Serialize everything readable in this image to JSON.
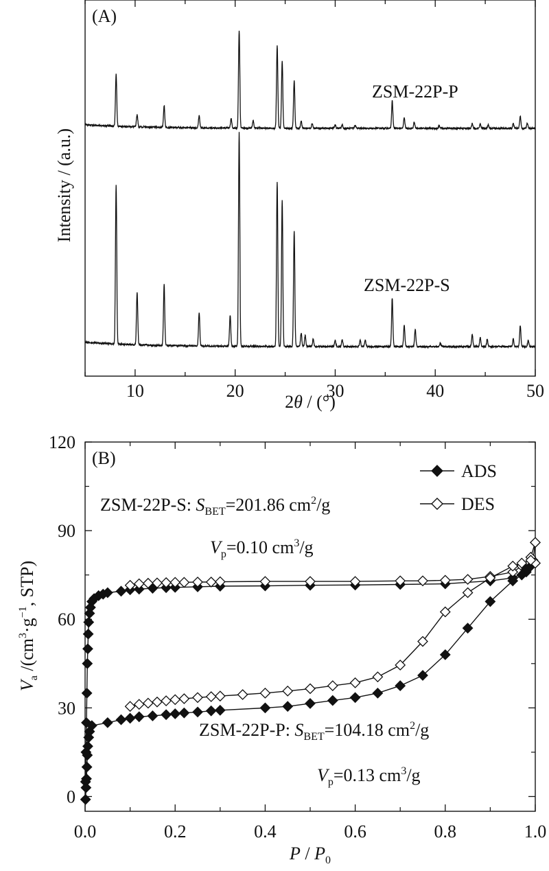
{
  "chart_data": [
    {
      "panel_label": "(A)",
      "type": "line",
      "xlabel": "2θ / (°)",
      "xlabel_parts": [
        "2",
        "θ",
        " / (°)"
      ],
      "ylabel": "Intensity / (a.u.)",
      "xlim": [
        5,
        50
      ],
      "xticks": [
        10,
        20,
        30,
        40,
        50
      ],
      "y_ticks_shown": false,
      "series": [
        {
          "name": "ZSM-22P-P",
          "baseline": 0.1,
          "peaks": [
            [
              8.1,
              0.85
            ],
            [
              10.2,
              0.2
            ],
            [
              12.9,
              0.36
            ],
            [
              16.4,
              0.2
            ],
            [
              19.6,
              0.16
            ],
            [
              20.4,
              1.6
            ],
            [
              21.8,
              0.12
            ],
            [
              24.2,
              1.35
            ],
            [
              24.7,
              1.1
            ],
            [
              25.9,
              0.78
            ],
            [
              26.6,
              0.12
            ],
            [
              27.7,
              0.08
            ],
            [
              30.0,
              0.06
            ],
            [
              30.7,
              0.06
            ],
            [
              32.0,
              0.05
            ],
            [
              35.7,
              0.45
            ],
            [
              36.9,
              0.18
            ],
            [
              37.9,
              0.1
            ],
            [
              40.4,
              0.05
            ],
            [
              43.7,
              0.08
            ],
            [
              44.5,
              0.07
            ],
            [
              45.3,
              0.06
            ],
            [
              47.8,
              0.08
            ],
            [
              48.5,
              0.2
            ],
            [
              49.2,
              0.08
            ]
          ]
        },
        {
          "name": "ZSM-22P-S",
          "baseline": 0.12,
          "peaks": [
            [
              8.1,
              2.6
            ],
            [
              10.2,
              0.85
            ],
            [
              12.9,
              1.0
            ],
            [
              16.4,
              0.55
            ],
            [
              19.5,
              0.5
            ],
            [
              20.4,
              3.5
            ],
            [
              24.2,
              2.7
            ],
            [
              24.7,
              2.4
            ],
            [
              25.9,
              1.9
            ],
            [
              26.6,
              0.22
            ],
            [
              27.0,
              0.18
            ],
            [
              27.8,
              0.12
            ],
            [
              30.0,
              0.1
            ],
            [
              30.7,
              0.12
            ],
            [
              32.5,
              0.1
            ],
            [
              33.0,
              0.1
            ],
            [
              35.7,
              0.8
            ],
            [
              36.9,
              0.35
            ],
            [
              38.0,
              0.28
            ],
            [
              40.5,
              0.06
            ],
            [
              43.7,
              0.2
            ],
            [
              44.5,
              0.15
            ],
            [
              45.2,
              0.12
            ],
            [
              47.8,
              0.12
            ],
            [
              48.5,
              0.35
            ],
            [
              49.3,
              0.1
            ]
          ]
        }
      ],
      "annotations": [
        "ZSM-22P-P",
        "ZSM-22P-S"
      ]
    },
    {
      "panel_label": "(B)",
      "type": "line",
      "xlabel": "P / P0",
      "xlabel_parts": [
        "P",
        " / ",
        "P",
        "0"
      ],
      "ylabel": "Va /(cm3·g−1, STP)",
      "ylabel_parts": [
        "V",
        "a",
        " /(cm",
        "3",
        "·g",
        "−1",
        ", STP)"
      ],
      "xlim": [
        0.0,
        1.0
      ],
      "ylim": [
        -5,
        120
      ],
      "xticks": [
        "0.0",
        "0.2",
        "0.4",
        "0.6",
        "0.8",
        "1.0"
      ],
      "yticks": [
        "0",
        "30",
        "60",
        "90",
        "120"
      ],
      "legend": {
        "position": "top-right",
        "entries": [
          {
            "label": "ADS",
            "marker": "filled-diamond"
          },
          {
            "label": "DES",
            "marker": "open-diamond"
          }
        ]
      },
      "series": [
        {
          "name": "ADS",
          "sample": "ZSM-22P-S",
          "points": [
            [
              0.001,
              5
            ],
            [
              0.002,
              15
            ],
            [
              0.003,
              25
            ],
            [
              0.004,
              35
            ],
            [
              0.005,
              45
            ],
            [
              0.006,
              50
            ],
            [
              0.007,
              55
            ],
            [
              0.008,
              59
            ],
            [
              0.01,
              62
            ],
            [
              0.012,
              64
            ],
            [
              0.015,
              66
            ],
            [
              0.02,
              67
            ],
            [
              0.03,
              68
            ],
            [
              0.04,
              68.5
            ],
            [
              0.05,
              69
            ],
            [
              0.08,
              69.5
            ],
            [
              0.1,
              70
            ],
            [
              0.12,
              70.2
            ],
            [
              0.15,
              70.5
            ],
            [
              0.18,
              70.7
            ],
            [
              0.2,
              70.8
            ],
            [
              0.25,
              71
            ],
            [
              0.3,
              71.2
            ],
            [
              0.4,
              71.3
            ],
            [
              0.5,
              71.5
            ],
            [
              0.6,
              71.6
            ],
            [
              0.7,
              71.8
            ],
            [
              0.8,
              72
            ],
            [
              0.9,
              73
            ],
            [
              0.95,
              74
            ],
            [
              0.98,
              76
            ],
            [
              0.995,
              80
            ],
            [
              1.0,
              86
            ]
          ]
        },
        {
          "name": "DES",
          "sample": "ZSM-22P-S",
          "points": [
            [
              1.0,
              86
            ],
            [
              0.99,
              81
            ],
            [
              0.97,
              78
            ],
            [
              0.95,
              76
            ],
            [
              0.9,
              74.5
            ],
            [
              0.85,
              73.5
            ],
            [
              0.8,
              73.2
            ],
            [
              0.75,
              73
            ],
            [
              0.7,
              73
            ],
            [
              0.6,
              72.8
            ],
            [
              0.5,
              72.8
            ],
            [
              0.4,
              72.8
            ],
            [
              0.3,
              72.7
            ],
            [
              0.28,
              72.6
            ],
            [
              0.25,
              72.6
            ],
            [
              0.22,
              72.5
            ],
            [
              0.2,
              72.5
            ],
            [
              0.18,
              72.4
            ],
            [
              0.16,
              72.3
            ],
            [
              0.14,
              72.2
            ],
            [
              0.12,
              72.0
            ],
            [
              0.1,
              71.5
            ]
          ]
        },
        {
          "name": "ADS",
          "sample": "ZSM-22P-P",
          "points": [
            [
              0.001,
              -1
            ],
            [
              0.002,
              3
            ],
            [
              0.003,
              6
            ],
            [
              0.004,
              10
            ],
            [
              0.005,
              14
            ],
            [
              0.006,
              17
            ],
            [
              0.008,
              20
            ],
            [
              0.01,
              22
            ],
            [
              0.015,
              24
            ],
            [
              0.05,
              25
            ],
            [
              0.08,
              26
            ],
            [
              0.1,
              26.5
            ],
            [
              0.12,
              27
            ],
            [
              0.15,
              27.3
            ],
            [
              0.18,
              27.7
            ],
            [
              0.2,
              28
            ],
            [
              0.22,
              28.3
            ],
            [
              0.25,
              28.6
            ],
            [
              0.28,
              29
            ],
            [
              0.3,
              29.2
            ],
            [
              0.4,
              30
            ],
            [
              0.45,
              30.5
            ],
            [
              0.5,
              31.5
            ],
            [
              0.55,
              32.5
            ],
            [
              0.6,
              33.5
            ],
            [
              0.65,
              35
            ],
            [
              0.7,
              37.5
            ],
            [
              0.75,
              41
            ],
            [
              0.8,
              48
            ],
            [
              0.85,
              57
            ],
            [
              0.9,
              66
            ],
            [
              0.95,
              73
            ],
            [
              0.97,
              75
            ],
            [
              0.98,
              77
            ],
            [
              0.99,
              78
            ],
            [
              1.0,
              79
            ]
          ]
        },
        {
          "name": "DES",
          "sample": "ZSM-22P-P",
          "points": [
            [
              1.0,
              79
            ],
            [
              0.99,
              80
            ],
            [
              0.97,
              79
            ],
            [
              0.95,
              78
            ],
            [
              0.9,
              74
            ],
            [
              0.85,
              69
            ],
            [
              0.8,
              62.5
            ],
            [
              0.75,
              52.5
            ],
            [
              0.7,
              44.5
            ],
            [
              0.65,
              40.5
            ],
            [
              0.6,
              38.5
            ],
            [
              0.55,
              37.5
            ],
            [
              0.5,
              36.5
            ],
            [
              0.45,
              35.7
            ],
            [
              0.4,
              35
            ],
            [
              0.35,
              34.5
            ],
            [
              0.3,
              34
            ],
            [
              0.28,
              33.8
            ],
            [
              0.25,
              33.5
            ],
            [
              0.22,
              33.1
            ],
            [
              0.2,
              32.8
            ],
            [
              0.18,
              32.4
            ],
            [
              0.16,
              32
            ],
            [
              0.14,
              31.6
            ],
            [
              0.12,
              31.2
            ],
            [
              0.1,
              30.5
            ]
          ]
        }
      ],
      "annotations": {
        "sample_s": {
          "prefix": "ZSM-22P-S: ",
          "s": "S",
          "sub": "BET",
          "value": "=201.86 cm",
          "sup": "2",
          "unit": "/g",
          "vp": "V",
          "vp_sub": "p",
          "vp_value": "=0.10 cm",
          "vp_sup": "3",
          "vp_unit": "/g"
        },
        "sample_p": {
          "prefix": "ZSM-22P-P: ",
          "s": "S",
          "sub": "BET",
          "value": "=104.18 cm",
          "sup": "2",
          "unit": "/g",
          "vp": "V",
          "vp_sub": "p",
          "vp_value": "=0.13 cm",
          "vp_sup": "3",
          "vp_unit": "/g"
        }
      }
    }
  ],
  "colors": {
    "line": "#111111",
    "background": "#ffffff"
  },
  "icons": {
    "ads_marker": "filled-diamond-icon",
    "des_marker": "open-diamond-icon"
  }
}
